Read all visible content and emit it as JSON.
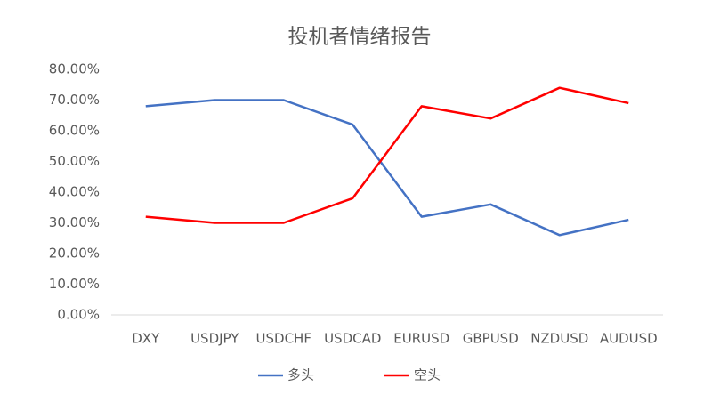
{
  "chart_data": {
    "type": "line",
    "title": "投机者情绪报告",
    "categories": [
      "DXY",
      "USDJPY",
      "USDCHF",
      "USDCAD",
      "EURUSD",
      "GBPUSD",
      "NZDUSD",
      "AUDUSD"
    ],
    "series": [
      {
        "name": "多头",
        "color": "#4472c4",
        "values": [
          68,
          70,
          70,
          62,
          32,
          36,
          26,
          31
        ]
      },
      {
        "name": "空头",
        "color": "#ff0000",
        "values": [
          32,
          30,
          30,
          38,
          68,
          64,
          74,
          69
        ]
      }
    ],
    "ylim": [
      0,
      80
    ],
    "yticks": [
      {
        "value": 0,
        "label": "0.00%"
      },
      {
        "value": 10,
        "label": "10.00%"
      },
      {
        "value": 20,
        "label": "20.00%"
      },
      {
        "value": 30,
        "label": "30.00%"
      },
      {
        "value": 40,
        "label": "40.00%"
      },
      {
        "value": 50,
        "label": "50.00%"
      },
      {
        "value": 60,
        "label": "60.00%"
      },
      {
        "value": 70,
        "label": "70.00%"
      },
      {
        "value": 80,
        "label": "80.00%"
      }
    ],
    "grid": false,
    "legend": "bottom"
  }
}
